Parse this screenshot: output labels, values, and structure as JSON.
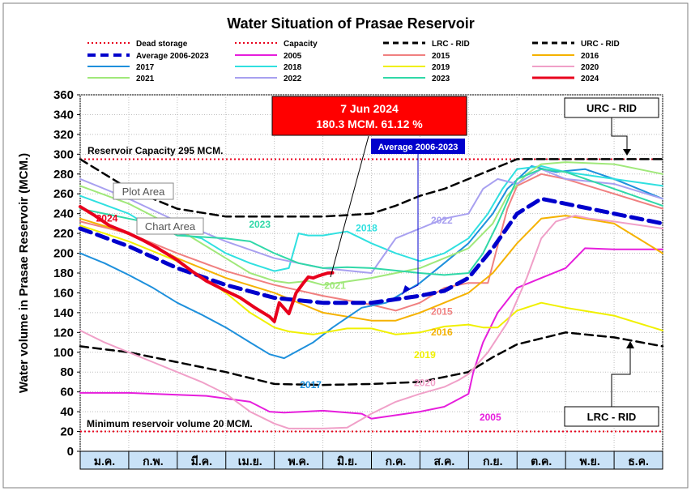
{
  "chart_data": {
    "type": "line",
    "title": "Water Situation of Prasae Reservoir",
    "ylabel": "Water volume in Prasae Reservoir (MCM.)",
    "xlabel": "",
    "ylim": [
      0,
      360
    ],
    "yticks": [
      0,
      20,
      40,
      60,
      80,
      100,
      120,
      140,
      160,
      180,
      200,
      220,
      240,
      260,
      280,
      300,
      320,
      340,
      360
    ],
    "categories": [
      "ม.ค.",
      "ก.พ.",
      "มี.ค.",
      "เม.ย.",
      "พ.ค.",
      "มิ.ย.",
      "ก.ค.",
      "ส.ค.",
      "ก.ย.",
      "ต.ค.",
      "พ.ย.",
      "ธ.ค."
    ],
    "grid": true,
    "legend_placement": "top",
    "legend": [
      {
        "label": "Dead storage",
        "color": "#e8001c",
        "dash": "dotted"
      },
      {
        "label": "Capacity",
        "color": "#e8001c",
        "dash": "dotted"
      },
      {
        "label": "LRC - RID",
        "color": "#000000",
        "dash": "dashed"
      },
      {
        "label": "URC - RID",
        "color": "#000000",
        "dash": "dashed"
      },
      {
        "label": "Average 2006-2023",
        "color": "#0000cc",
        "dash": "dashed-thick"
      },
      {
        "label": "2005",
        "color": "#e61edc",
        "dash": "solid"
      },
      {
        "label": "2015",
        "color": "#f08080",
        "dash": "solid"
      },
      {
        "label": "2016",
        "color": "#f5b200",
        "dash": "solid"
      },
      {
        "label": "2017",
        "color": "#1e90dc",
        "dash": "solid"
      },
      {
        "label": "2018",
        "color": "#30e0e0",
        "dash": "solid"
      },
      {
        "label": "2019",
        "color": "#f0f000",
        "dash": "solid"
      },
      {
        "label": "2020",
        "color": "#f0a0c8",
        "dash": "solid"
      },
      {
        "label": "2021",
        "color": "#a0e87a",
        "dash": "solid"
      },
      {
        "label": "2022",
        "color": "#a8a0f0",
        "dash": "solid"
      },
      {
        "label": "2023",
        "color": "#30d8a8",
        "dash": "solid"
      },
      {
        "label": "2024",
        "color": "#e8001c",
        "dash": "solid-thick"
      }
    ],
    "reference_lines": {
      "capacity": 295,
      "dead_storage": 20
    },
    "annotations": {
      "capacity_label": "Reservoir Capacity 295 MCM.",
      "min_label": "Minimum reservoir volume 20 MCM.",
      "current_date": "7 Jun 2024",
      "current_value": "180.3 MCM. 61.12 %",
      "average_label": "Average 2006-2023",
      "urc_label": "URC - RID",
      "lrc_label": "LRC - RID",
      "plot_area_tip": "Plot Area",
      "chart_area_tip": "Chart Area"
    },
    "series": [
      {
        "name": "URC - RID",
        "color": "#000000",
        "width": 2.5,
        "dash": "10,6",
        "x": [
          0,
          0.5,
          1,
          2,
          3,
          4,
          5,
          6,
          6.5,
          7,
          7.5,
          8,
          8.5,
          9,
          10,
          11,
          12
        ],
        "y": [
          295,
          280,
          265,
          245,
          237,
          237,
          237,
          240,
          248,
          258,
          265,
          275,
          285,
          295,
          295,
          295,
          295
        ]
      },
      {
        "name": "LRC - RID",
        "color": "#000000",
        "width": 2.5,
        "dash": "10,6",
        "x": [
          0,
          1,
          2,
          3,
          4,
          5,
          6,
          7,
          7.5,
          8,
          8.5,
          9,
          10,
          11,
          12
        ],
        "y": [
          106,
          100,
          90,
          80,
          68,
          67,
          68,
          70,
          75,
          80,
          95,
          108,
          120,
          115,
          106
        ]
      },
      {
        "name": "2005",
        "color": "#e61edc",
        "width": 2,
        "dash": "",
        "x": [
          0,
          1,
          2,
          2.6,
          3.5,
          3.9,
          4.2,
          5,
          5.8,
          6,
          7,
          7.5,
          8,
          8.1,
          8.3,
          8.6,
          9,
          9.5,
          10,
          10.4,
          11,
          12
        ],
        "y": [
          59,
          59,
          57,
          56,
          50,
          40,
          39,
          41,
          38,
          33,
          40,
          45,
          58,
          80,
          110,
          140,
          165,
          175,
          185,
          205,
          204,
          204
        ]
      },
      {
        "name": "2015",
        "color": "#f08080",
        "width": 2,
        "dash": "",
        "x": [
          0,
          1,
          2,
          3,
          4,
          5,
          6,
          6.5,
          7,
          7.5,
          8,
          8.4,
          8.8,
          9,
          9.5,
          10,
          11,
          12
        ],
        "y": [
          232,
          220,
          200,
          182,
          168,
          157,
          148,
          142,
          150,
          165,
          170,
          170,
          245,
          268,
          280,
          275,
          260,
          245
        ]
      },
      {
        "name": "2016",
        "color": "#f5b200",
        "width": 2,
        "dash": "",
        "x": [
          0,
          1,
          2,
          3,
          4,
          5,
          6,
          6.5,
          7,
          7.5,
          8,
          8.5,
          9,
          9.5,
          10,
          11,
          12
        ],
        "y": [
          235,
          220,
          195,
          175,
          160,
          140,
          132,
          132,
          140,
          150,
          160,
          180,
          210,
          235,
          238,
          230,
          200
        ]
      },
      {
        "name": "2017",
        "color": "#1e90dc",
        "width": 2,
        "dash": "",
        "x": [
          0,
          0.5,
          1,
          1.5,
          2,
          2.5,
          3,
          3.5,
          3.9,
          4.2,
          4.8,
          5.2,
          5.8,
          6.3,
          7,
          7.5,
          8,
          8.5,
          8.8,
          9.3,
          9.8,
          10.4,
          11,
          11.5,
          12
        ],
        "y": [
          200,
          190,
          178,
          165,
          150,
          138,
          125,
          110,
          98,
          94,
          110,
          125,
          145,
          150,
          170,
          190,
          210,
          240,
          265,
          288,
          282,
          285,
          275,
          265,
          255
        ]
      },
      {
        "name": "2018",
        "color": "#30e0e0",
        "width": 2,
        "dash": "",
        "x": [
          0,
          1,
          1.5,
          2,
          2.5,
          3,
          3.5,
          4,
          4.3,
          4.5,
          4.7,
          5,
          5.5,
          6,
          6.5,
          7,
          7.5,
          8,
          8.4,
          8.7,
          9,
          9.5,
          10,
          11,
          12
        ],
        "y": [
          258,
          240,
          225,
          220,
          215,
          200,
          190,
          182,
          185,
          220,
          218,
          218,
          222,
          210,
          200,
          192,
          200,
          215,
          240,
          265,
          285,
          288,
          282,
          275,
          268
        ]
      },
      {
        "name": "2019",
        "color": "#f0f000",
        "width": 2,
        "dash": "",
        "x": [
          0,
          1,
          2,
          3,
          3.5,
          4,
          4.3,
          4.8,
          5.5,
          6,
          6.5,
          7,
          7.5,
          8,
          8.3,
          8.6,
          9,
          9.5,
          10,
          11,
          12
        ],
        "y": [
          228,
          212,
          192,
          160,
          140,
          125,
          121,
          118,
          124,
          124,
          118,
          120,
          126,
          128,
          125,
          125,
          142,
          150,
          145,
          137,
          122
        ]
      },
      {
        "name": "2020",
        "color": "#f0a0c8",
        "width": 2,
        "dash": "",
        "x": [
          0,
          0.5,
          1,
          1.5,
          2,
          2.5,
          3,
          3.5,
          4,
          4.3,
          5,
          5.5,
          6,
          6.5,
          7,
          7.5,
          7.8,
          8,
          8.4,
          8.8,
          9.2,
          9.5,
          9.8,
          10.2,
          10.5,
          11,
          12
        ],
        "y": [
          122,
          110,
          100,
          90,
          80,
          70,
          58,
          40,
          28,
          23,
          23,
          24,
          38,
          50,
          58,
          65,
          72,
          78,
          100,
          130,
          175,
          215,
          232,
          238,
          235,
          232,
          225
        ]
      },
      {
        "name": "2021",
        "color": "#a0e87a",
        "width": 2,
        "dash": "",
        "x": [
          0,
          1,
          2,
          3,
          3.5,
          4,
          4.3,
          4.7,
          5,
          6,
          7,
          7.5,
          8,
          8.5,
          8.8,
          9.2,
          9.5,
          10,
          11,
          12
        ],
        "y": [
          268,
          250,
          225,
          195,
          180,
          172,
          170,
          172,
          168,
          175,
          185,
          195,
          205,
          230,
          258,
          280,
          290,
          292,
          290,
          280
        ]
      },
      {
        "name": "2022",
        "color": "#a8a0f0",
        "width": 2,
        "dash": "",
        "x": [
          0,
          1,
          2,
          3,
          4,
          5,
          6,
          6.5,
          7,
          7.5,
          8,
          8.3,
          8.6,
          9,
          9.5,
          10,
          11,
          12
        ],
        "y": [
          275,
          255,
          232,
          212,
          195,
          185,
          180,
          215,
          225,
          235,
          240,
          265,
          275,
          270,
          285,
          275,
          270,
          255
        ]
      },
      {
        "name": "2023",
        "color": "#30d8a8",
        "width": 2,
        "dash": "",
        "x": [
          0,
          1,
          1.5,
          2,
          3,
          3.5,
          4,
          4.5,
          5,
          5.5,
          6,
          7,
          7.5,
          8,
          8.3,
          8.6,
          9,
          9.5,
          10,
          11,
          12
        ],
        "y": [
          245,
          235,
          230,
          218,
          215,
          212,
          200,
          190,
          185,
          186,
          185,
          180,
          178,
          180,
          200,
          230,
          275,
          285,
          282,
          265,
          248
        ]
      },
      {
        "name": "Average 2006-2023",
        "color": "#0000cc",
        "width": 5,
        "dash": "14,8",
        "x": [
          0,
          1,
          2,
          3,
          4,
          5,
          6,
          7,
          7.5,
          8,
          8.5,
          9,
          9.5,
          10,
          11,
          12
        ],
        "y": [
          225,
          207,
          185,
          168,
          155,
          150,
          150,
          157,
          162,
          175,
          205,
          240,
          255,
          250,
          240,
          230
        ]
      },
      {
        "name": "2024",
        "color": "#e8001c",
        "width": 4,
        "dash": "",
        "x": [
          0,
          0.3,
          0.6,
          1,
          1.3,
          1.6,
          2,
          2.3,
          2.6,
          3,
          3.3,
          3.6,
          3.9,
          4,
          4.1,
          4.3,
          4.45,
          4.6,
          4.7,
          4.8,
          4.9,
          5.1,
          5.2
        ],
        "y": [
          247,
          238,
          228,
          220,
          213,
          205,
          193,
          182,
          172,
          162,
          155,
          145,
          136,
          131,
          150,
          139,
          160,
          170,
          176,
          175,
          177,
          180,
          180.3
        ]
      }
    ]
  }
}
